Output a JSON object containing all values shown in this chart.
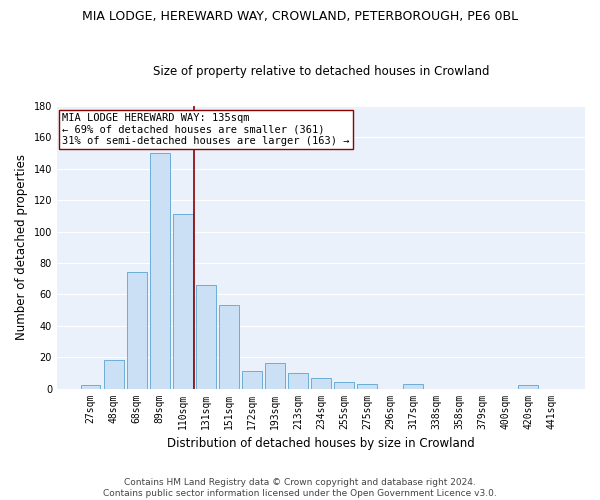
{
  "title": "MIA LODGE, HEREWARD WAY, CROWLAND, PETERBOROUGH, PE6 0BL",
  "subtitle": "Size of property relative to detached houses in Crowland",
  "xlabel": "Distribution of detached houses by size in Crowland",
  "ylabel": "Number of detached properties",
  "footer_line1": "Contains HM Land Registry data © Crown copyright and database right 2024.",
  "footer_line2": "Contains public sector information licensed under the Open Government Licence v3.0.",
  "bar_labels": [
    "27sqm",
    "48sqm",
    "68sqm",
    "89sqm",
    "110sqm",
    "131sqm",
    "151sqm",
    "172sqm",
    "193sqm",
    "213sqm",
    "234sqm",
    "255sqm",
    "275sqm",
    "296sqm",
    "317sqm",
    "338sqm",
    "358sqm",
    "379sqm",
    "400sqm",
    "420sqm",
    "441sqm"
  ],
  "bar_values": [
    2,
    18,
    74,
    150,
    111,
    66,
    53,
    11,
    16,
    10,
    7,
    4,
    3,
    0,
    3,
    0,
    0,
    0,
    0,
    2,
    0
  ],
  "bar_color": "#cce0f5",
  "bar_edgecolor": "#6aaed6",
  "vline_index": 5,
  "vline_color": "#8b0000",
  "annotation_text": "MIA LODGE HEREWARD WAY: 135sqm\n← 69% of detached houses are smaller (361)\n31% of semi-detached houses are larger (163) →",
  "annotation_box_color": "#ffffff",
  "annotation_box_edgecolor": "#8b0000",
  "ylim": [
    0,
    180
  ],
  "yticks": [
    0,
    20,
    40,
    60,
    80,
    100,
    120,
    140,
    160,
    180
  ],
  "bg_color": "#eaf1fb",
  "grid_color": "#ffffff",
  "title_fontsize": 9,
  "subtitle_fontsize": 8.5,
  "tick_fontsize": 7,
  "ylabel_fontsize": 8.5,
  "xlabel_fontsize": 8.5,
  "footer_fontsize": 6.5,
  "annotation_fontsize": 7.5
}
